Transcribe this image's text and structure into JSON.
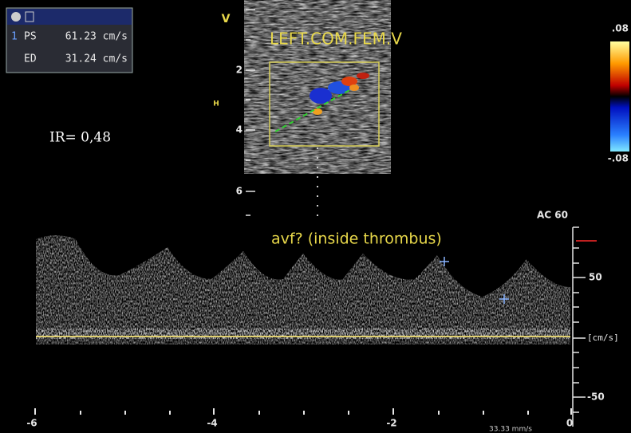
{
  "measurements": {
    "index": "1",
    "rows": [
      {
        "label": "PS",
        "value": "61.23 cm/s"
      },
      {
        "label": "ED",
        "value": "31.24 cm/s"
      }
    ]
  },
  "ratio": "IR= 0,48",
  "mode_label": "V",
  "depth_marker": "H",
  "image_label": "LEFT.COM.FEM.V",
  "depth_scale": [
    "2",
    "4",
    "6"
  ],
  "color_scale": {
    "max": ".08",
    "min": "-.08"
  },
  "doppler": {
    "setting": "AC 60",
    "annotation": "avf? (inside thrombus)",
    "velocity_scale": [
      "50",
      "[cm/s]",
      "-50"
    ],
    "time_axis": [
      "-6",
      "-4",
      "-2",
      "0"
    ],
    "sweep": "33.33 mm/s"
  }
}
